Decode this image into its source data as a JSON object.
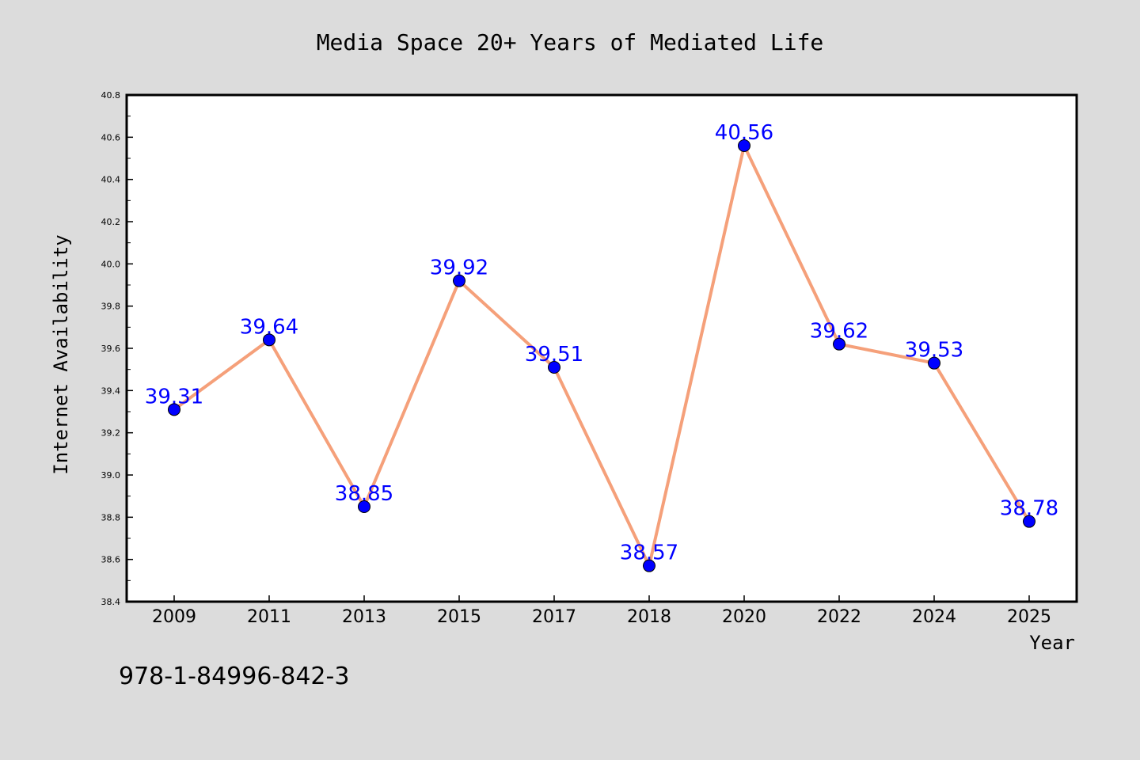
{
  "chart_data": {
    "type": "line",
    "title": "Media Space 20+ Years of Mediated Life",
    "xlabel": "Year",
    "ylabel": "Internet Availability",
    "categories": [
      "2009",
      "2011",
      "2013",
      "2015",
      "2017",
      "2018",
      "2020",
      "2022",
      "2024",
      "2025"
    ],
    "series": [
      {
        "values": [
          39.31,
          39.64,
          38.85,
          39.92,
          39.51,
          38.57,
          40.56,
          39.62,
          39.53,
          38.78
        ]
      }
    ],
    "data_labels": [
      "39.31",
      "39.64",
      "38.85",
      "39.92",
      "39.51",
      "38.57",
      "40.56",
      "39.62",
      "39.53",
      "38.78"
    ],
    "ylim": [
      38.4,
      40.8
    ],
    "yticks": [
      "38.4",
      "38.6",
      "38.8",
      "39.0",
      "39.2",
      "39.4",
      "39.6",
      "39.8",
      "40.0",
      "40.2",
      "40.4",
      "40.6",
      "40.8"
    ],
    "grid": false,
    "legend": "none",
    "colors": {
      "line": "#f5a07a",
      "marker": "#0000ff",
      "label": "#0000ff",
      "background": "#dcdcdc",
      "plot_background": "#ffffff"
    }
  },
  "footer_text": "978-1-84996-842-3"
}
